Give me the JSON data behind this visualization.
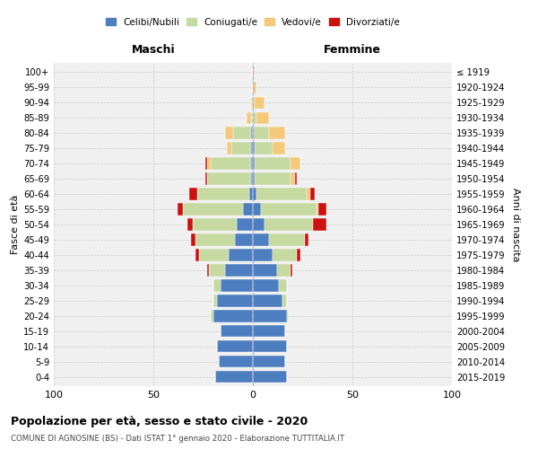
{
  "age_groups": [
    "0-4",
    "5-9",
    "10-14",
    "15-19",
    "20-24",
    "25-29",
    "30-34",
    "35-39",
    "40-44",
    "45-49",
    "50-54",
    "55-59",
    "60-64",
    "65-69",
    "70-74",
    "75-79",
    "80-84",
    "85-89",
    "90-94",
    "95-99",
    "100+"
  ],
  "birth_years": [
    "2015-2019",
    "2010-2014",
    "2005-2009",
    "2000-2004",
    "1995-1999",
    "1990-1994",
    "1985-1989",
    "1980-1984",
    "1975-1979",
    "1970-1974",
    "1965-1969",
    "1960-1964",
    "1955-1959",
    "1950-1954",
    "1945-1949",
    "1940-1944",
    "1935-1939",
    "1930-1934",
    "1925-1929",
    "1920-1924",
    "≤ 1919"
  ],
  "colors": {
    "celibi": "#4d7ebf",
    "coniugati": "#c5d9a0",
    "vedovi": "#f5c97a",
    "divorziati": "#cc1111"
  },
  "males": {
    "celibi": [
      19,
      17,
      18,
      16,
      20,
      18,
      16,
      14,
      12,
      9,
      8,
      5,
      2,
      1,
      1,
      1,
      1,
      0,
      0,
      0,
      0
    ],
    "coniugati": [
      0,
      0,
      0,
      0,
      1,
      2,
      4,
      8,
      15,
      20,
      22,
      30,
      26,
      22,
      20,
      10,
      9,
      1,
      0,
      0,
      0
    ],
    "vedovi": [
      0,
      0,
      0,
      0,
      0,
      0,
      0,
      0,
      0,
      0,
      0,
      0,
      0,
      0,
      2,
      2,
      4,
      2,
      1,
      0,
      0
    ],
    "divorziati": [
      0,
      0,
      0,
      0,
      0,
      0,
      0,
      1,
      2,
      2,
      3,
      3,
      4,
      1,
      1,
      0,
      0,
      0,
      0,
      0,
      0
    ]
  },
  "females": {
    "celibi": [
      17,
      16,
      17,
      16,
      17,
      15,
      13,
      12,
      10,
      8,
      6,
      4,
      2,
      1,
      1,
      1,
      0,
      0,
      0,
      0,
      0
    ],
    "coniugati": [
      0,
      0,
      0,
      0,
      1,
      2,
      4,
      7,
      12,
      18,
      24,
      28,
      25,
      18,
      18,
      9,
      8,
      2,
      1,
      0,
      0
    ],
    "vedovi": [
      0,
      0,
      0,
      0,
      0,
      0,
      0,
      0,
      0,
      0,
      0,
      1,
      2,
      2,
      5,
      6,
      8,
      6,
      5,
      2,
      1
    ],
    "divorziati": [
      0,
      0,
      0,
      0,
      0,
      0,
      0,
      1,
      2,
      2,
      7,
      4,
      2,
      1,
      0,
      0,
      0,
      0,
      0,
      0,
      0
    ]
  },
  "xlim": 100,
  "title": "Popolazione per età, sesso e stato civile - 2020",
  "subtitle": "COMUNE DI AGNOSINE (BS) - Dati ISTAT 1° gennaio 2020 - Elaborazione TUTTITALIA.IT",
  "ylabel_left": "Fasce di età",
  "ylabel_right": "Anni di nascita",
  "xlabel_left": "Maschi",
  "xlabel_right": "Femmine",
  "background_color": "#ffffff",
  "grid_color": "#cccccc"
}
